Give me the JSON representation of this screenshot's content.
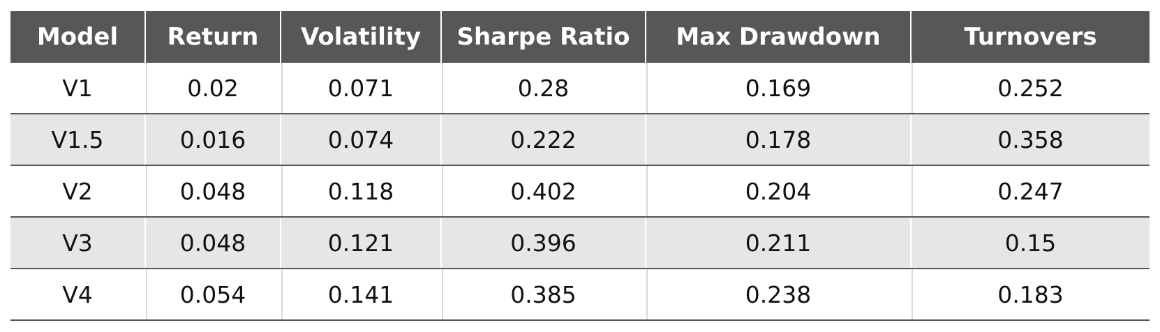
{
  "table": {
    "headers": [
      "Model",
      "Return",
      "Volatility",
      "Sharpe Ratio",
      "Max Drawdown",
      "Turnovers"
    ],
    "rows": [
      [
        "V1",
        "0.02",
        "0.071",
        "0.28",
        "0.169",
        "0.252"
      ],
      [
        "V1.5",
        "0.016",
        "0.074",
        "0.222",
        "0.178",
        "0.358"
      ],
      [
        "V2",
        "0.048",
        "0.118",
        "0.402",
        "0.204",
        "0.247"
      ],
      [
        "V3",
        "0.048",
        "0.121",
        "0.396",
        "0.211",
        "0.15"
      ],
      [
        "V4",
        "0.054",
        "0.141",
        "0.385",
        "0.238",
        "0.183"
      ]
    ]
  },
  "colors": {
    "header_bg": "#575757",
    "header_text": "#ffffff",
    "row_alt_bg": "#e6e6e6",
    "row_bg": "#ffffff",
    "rule": "#555555"
  }
}
